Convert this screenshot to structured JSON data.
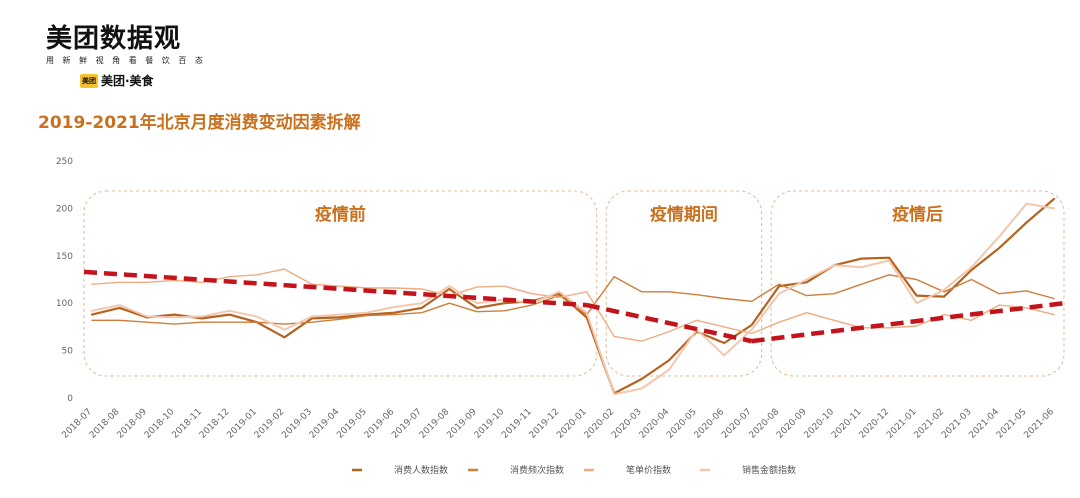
{
  "brand": {
    "title": "美团数据观",
    "tagline": "用 新 鲜 视 角 看 餐 饮 百 态",
    "badge": "美团",
    "sub_brand": "美团·美食"
  },
  "chart_title": "2019-2021年北京月度消费变动因素拆解",
  "colors": {
    "visitors": "#b5621f",
    "frequency": "#cf7e3a",
    "unit_price": "#f0ac80",
    "sales": "#f3c7ad",
    "trend": "#c3131b",
    "period_border": "#e2b896",
    "period_text": "#c9711f"
  },
  "chart_data": {
    "type": "line",
    "title": "2019-2021年北京月度消费变动因素拆解",
    "xlabel": "",
    "ylabel": "",
    "ylim": [
      0,
      250
    ],
    "yticks": [
      0,
      50,
      100,
      150,
      200,
      250
    ],
    "grid": false,
    "legend_position": "bottom",
    "categories": [
      "2018-07",
      "2018-08",
      "2018-09",
      "2018-10",
      "2018-11",
      "2018-12",
      "2019-01",
      "2019-02",
      "2019-03",
      "2019-04",
      "2019-05",
      "2019-06",
      "2019-07",
      "2019-08",
      "2019-09",
      "2019-10",
      "2019-11",
      "2019-12",
      "2020-01",
      "2020-02",
      "2020-03",
      "2020-04",
      "2020-05",
      "2020-06",
      "2020-07",
      "2020-08",
      "2020-09",
      "2020-10",
      "2020-11",
      "2020-12",
      "2021-01",
      "2021-02",
      "2021-03",
      "2021-04",
      "2021-05",
      "2021-06"
    ],
    "series": [
      {
        "name": "消费人数指数",
        "color_key": "visitors",
        "values": [
          88,
          95,
          85,
          88,
          84,
          88,
          80,
          64,
          84,
          85,
          88,
          90,
          95,
          115,
          95,
          100,
          102,
          110,
          85,
          5,
          20,
          40,
          70,
          58,
          77,
          118,
          122,
          140,
          147,
          148,
          108,
          107,
          135,
          158,
          185,
          210
        ]
      },
      {
        "name": "消费频次指数",
        "color_key": "frequency",
        "values": [
          82,
          82,
          80,
          78,
          80,
          80,
          80,
          78,
          80,
          83,
          87,
          88,
          90,
          100,
          91,
          92,
          98,
          108,
          88,
          128,
          112,
          112,
          109,
          105,
          102,
          120,
          108,
          110,
          120,
          130,
          125,
          112,
          125,
          110,
          113,
          105
        ]
      },
      {
        "name": "笔单价指数",
        "color_key": "unit_price",
        "values": [
          120,
          122,
          122,
          124,
          122,
          128,
          130,
          136,
          120,
          118,
          116,
          116,
          115,
          108,
          117,
          118,
          110,
          106,
          112,
          65,
          60,
          70,
          82,
          75,
          68,
          80,
          90,
          82,
          74,
          74,
          76,
          88,
          82,
          98,
          95,
          88
        ]
      },
      {
        "name": "销售金额指数",
        "color_key": "sales",
        "values": [
          92,
          98,
          86,
          85,
          86,
          92,
          86,
          72,
          86,
          88,
          90,
          96,
          100,
          118,
          100,
          104,
          100,
          112,
          90,
          4,
          10,
          30,
          72,
          45,
          72,
          110,
          125,
          140,
          138,
          145,
          100,
          114,
          138,
          170,
          205,
          200
        ]
      }
    ],
    "trendlines": [
      {
        "from": [
          "2018-07",
          133
        ],
        "to": [
          "2020-01",
          98
        ]
      },
      {
        "from": [
          "2020-01",
          98
        ],
        "to": [
          "2020-07",
          60
        ]
      },
      {
        "from": [
          "2020-07",
          60
        ],
        "to": [
          "2021-06",
          100
        ]
      }
    ],
    "periods": [
      {
        "label": "疫情前",
        "from": "2018-07",
        "to": "2020-01"
      },
      {
        "label": "疫情期间",
        "from": "2020-02",
        "to": "2020-07"
      },
      {
        "label": "疫情后",
        "from": "2020-08",
        "to": "2021-06"
      }
    ]
  }
}
